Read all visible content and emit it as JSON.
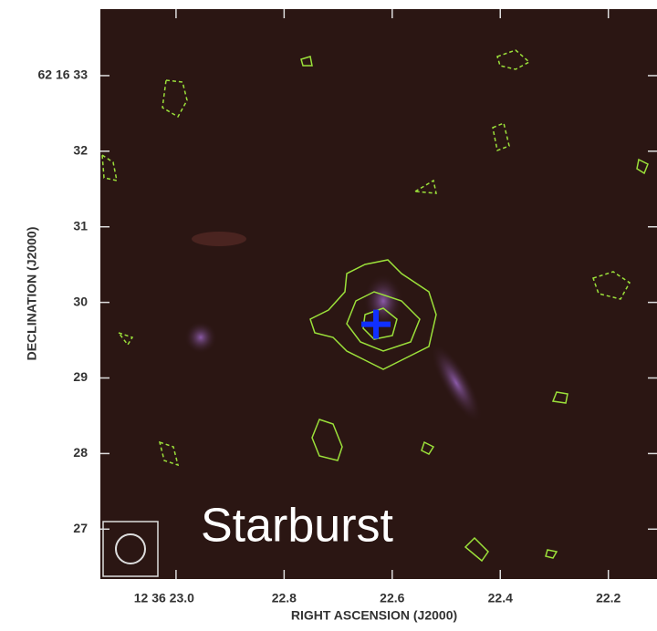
{
  "chart_data": {
    "type": "image",
    "xlabel": "RIGHT ASCENSION (J2000)",
    "ylabel": "DECLINATION (J2000)",
    "annotation": "Starburst",
    "xlim": [
      23.14,
      22.11
    ],
    "ylim": [
      26.34,
      33.88
    ],
    "xticks": [
      {
        "value": 23,
        "label": "12 36 23.0"
      },
      22.8,
      22.6,
      22.4,
      22.2
    ],
    "yticks": [
      {
        "value": 33,
        "label": "62 16 33"
      },
      32,
      31,
      30,
      29,
      28,
      27
    ],
    "source": {
      "x": 22.63,
      "y": 29.71,
      "color": "#1030ff"
    }
  }
}
